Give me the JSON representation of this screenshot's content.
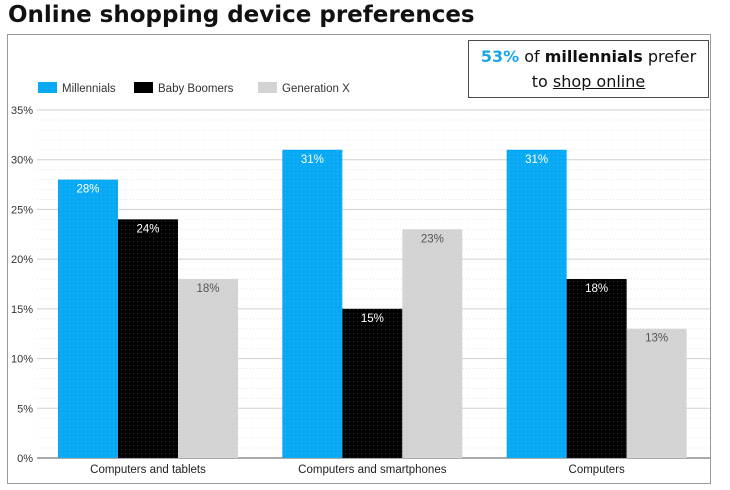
{
  "page_title": "Online shopping device preferences",
  "callout": {
    "percent": "53%",
    "text_mid": " of ",
    "group": "millennials",
    "text_after": " prefer",
    "line2_prefix": "to ",
    "action": "shop online"
  },
  "colors": {
    "Millennials": "#08a9f4",
    "Baby Boomers": "#000000",
    "Generation X": "#d3d3d3",
    "callout_accent": "#1aa6e6"
  },
  "chart_data": {
    "type": "bar",
    "title": "Online shopping device preferences",
    "categories": [
      "Computers and tablets",
      "Computers and smartphones",
      "Computers"
    ],
    "series": [
      {
        "name": "Millennials",
        "values": [
          28,
          31,
          31
        ],
        "labels": [
          "28%",
          "31%",
          "31%"
        ]
      },
      {
        "name": "Baby Boomers",
        "values": [
          24,
          15,
          18
        ],
        "labels": [
          "24%",
          "15%",
          "18%"
        ]
      },
      {
        "name": "Generation X",
        "values": [
          18,
          23,
          13
        ],
        "labels": [
          "18%",
          "23%",
          "13%"
        ]
      }
    ],
    "ylim": [
      0,
      35
    ],
    "yticks": [
      0,
      5,
      10,
      15,
      20,
      25,
      30,
      35
    ],
    "ytick_labels": [
      "0%",
      "5%",
      "10%",
      "15%",
      "20%",
      "25%",
      "30%",
      "35%"
    ],
    "xlabel": "",
    "ylabel": "",
    "grid": true,
    "legend_position": "top-left"
  }
}
